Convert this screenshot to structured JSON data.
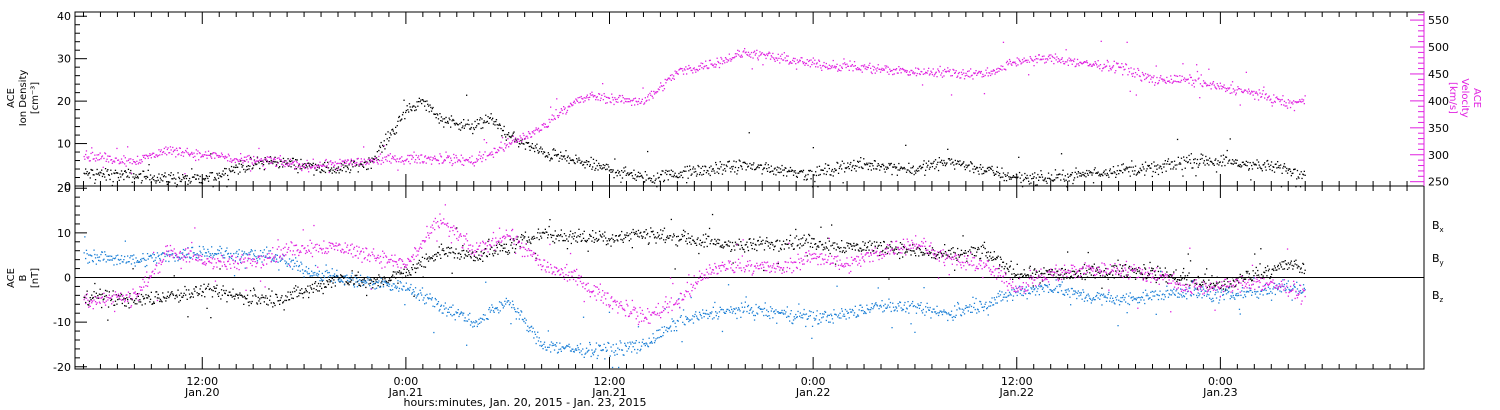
{
  "xlabel": "hours:minutes, Jan. 20, 2015 - Jan. 23, 2015",
  "x_ticks": [
    {
      "time": "12:00",
      "date": "Jan.20",
      "hours": 12
    },
    {
      "time": "0:00",
      "date": "Jan.21",
      "hours": 24
    },
    {
      "time": "12:00",
      "date": "Jan.21",
      "hours": 36
    },
    {
      "time": "0:00",
      "date": "Jan.22",
      "hours": 48
    },
    {
      "time": "12:00",
      "date": "Jan.22",
      "hours": 60
    },
    {
      "time": "0:00",
      "date": "Jan.23",
      "hours": 72
    }
  ],
  "x_range_hours": [
    4.5,
    84
  ],
  "colors": {
    "black": "#000000",
    "magenta": "#e020e0",
    "blue": "#1b7fd6"
  },
  "chart_data": [
    {
      "type": "scatter",
      "panel": "top",
      "x_units": "hours since 2015-01-20 00:00 UT",
      "y_left_label": [
        "ACE",
        "Ion Density",
        "[cm⁻³]"
      ],
      "y_right_label": [
        "ACE",
        "Velocity",
        "[km/s]"
      ],
      "y_left_range": [
        0,
        41
      ],
      "y_left_ticks": [
        0,
        10,
        20,
        30,
        40
      ],
      "y_right_range": [
        242,
        565
      ],
      "y_right_ticks": [
        250,
        300,
        350,
        400,
        450,
        500,
        550
      ],
      "series": [
        {
          "axis": "left",
          "color": "#000000",
          "x": [
            5,
            6,
            8,
            10,
            12,
            14,
            16,
            18,
            20,
            22,
            23,
            24,
            25,
            26,
            28,
            29,
            30,
            32,
            34,
            36,
            38,
            40,
            42,
            44,
            46,
            48,
            50,
            52,
            54,
            56,
            58,
            60,
            62,
            64,
            66,
            68,
            70,
            72,
            74,
            76,
            77
          ],
          "y": [
            3,
            3,
            2.5,
            2,
            1.5,
            4.5,
            6,
            5,
            4,
            6,
            12,
            18,
            20,
            16,
            14,
            16,
            12,
            8,
            6,
            4,
            2,
            3,
            4,
            5,
            4,
            3,
            5,
            5,
            4,
            6,
            4,
            2,
            2,
            3,
            4,
            4,
            6,
            6,
            5,
            4,
            3
          ]
        },
        {
          "axis": "right",
          "color": "#e020e0",
          "x": [
            5,
            6,
            8,
            10,
            12,
            13,
            14,
            16,
            18,
            20,
            22,
            24,
            26,
            28,
            30,
            31,
            32,
            33,
            34,
            35,
            36,
            38,
            40,
            42,
            44,
            46,
            48,
            50,
            52,
            54,
            56,
            58,
            60,
            62,
            64,
            66,
            68,
            70,
            72,
            74,
            76,
            77
          ],
          "y": [
            300,
            295,
            290,
            310,
            300,
            300,
            290,
            290,
            280,
            285,
            290,
            295,
            293,
            290,
            320,
            335,
            350,
            380,
            400,
            410,
            405,
            400,
            455,
            470,
            490,
            480,
            470,
            465,
            460,
            455,
            455,
            450,
            475,
            480,
            470,
            465,
            440,
            440,
            425,
            415,
            395,
            400
          ]
        }
      ]
    },
    {
      "type": "scatter",
      "panel": "bottom",
      "x_units": "hours since 2015-01-20 00:00 UT",
      "y_label": [
        "ACE",
        "B",
        "[nT]"
      ],
      "y_range": [
        -20.5,
        20.5
      ],
      "y_ticks": [
        -20,
        -10,
        0,
        10,
        20
      ],
      "zero_line": true,
      "series": [
        {
          "name": "Bx",
          "color": "#000000",
          "x": [
            5,
            8,
            10,
            12,
            14,
            16,
            18,
            20,
            22,
            24,
            26,
            28,
            30,
            32,
            34,
            36,
            38,
            40,
            42,
            44,
            46,
            48,
            50,
            52,
            54,
            56,
            58,
            60,
            62,
            64,
            66,
            68,
            70,
            72,
            74,
            76,
            77
          ],
          "y": [
            -4,
            -5,
            -4,
            -3,
            -4,
            -5,
            -3,
            0,
            -1,
            1,
            6,
            5,
            7,
            10,
            9,
            9,
            10,
            9,
            8,
            7,
            8,
            8,
            7,
            7,
            6,
            5,
            6,
            1,
            1,
            1,
            2,
            1,
            0,
            -2,
            1,
            3,
            2
          ]
        },
        {
          "name": "By",
          "color": "#1b7fd6",
          "x": [
            5,
            8,
            10,
            12,
            14,
            16,
            18,
            20,
            22,
            24,
            26,
            28,
            30,
            32,
            34,
            36,
            38,
            40,
            42,
            44,
            46,
            48,
            50,
            52,
            54,
            56,
            58,
            60,
            62,
            64,
            66,
            68,
            70,
            72,
            74,
            76,
            77
          ],
          "y": [
            5,
            4,
            5,
            6,
            5,
            5,
            2,
            0,
            -1,
            -2,
            -6,
            -10,
            -5,
            -15,
            -16,
            -16,
            -15,
            -10,
            -8,
            -7,
            -8,
            -9,
            -8,
            -6,
            -7,
            -8,
            -6,
            -3,
            -2,
            -4,
            -5,
            -4,
            -3,
            -4,
            -3,
            -2,
            -3
          ]
        },
        {
          "name": "Bz",
          "color": "#e020e0",
          "x": [
            5,
            8,
            10,
            12,
            14,
            16,
            18,
            20,
            22,
            24,
            25,
            26,
            28,
            30,
            32,
            34,
            36,
            38,
            40,
            42,
            44,
            46,
            48,
            50,
            52,
            54,
            56,
            58,
            60,
            62,
            64,
            66,
            68,
            70,
            72,
            74,
            76,
            77
          ],
          "y": [
            -5,
            -4,
            6,
            4,
            3,
            5,
            7,
            7,
            5,
            3,
            8,
            13,
            6,
            10,
            3,
            0,
            -5,
            -9,
            -5,
            2,
            3,
            2,
            5,
            3,
            6,
            8,
            4,
            3,
            -2,
            1,
            2,
            2,
            1,
            -2,
            -2,
            -1,
            -2,
            -4
          ]
        }
      ]
    }
  ]
}
